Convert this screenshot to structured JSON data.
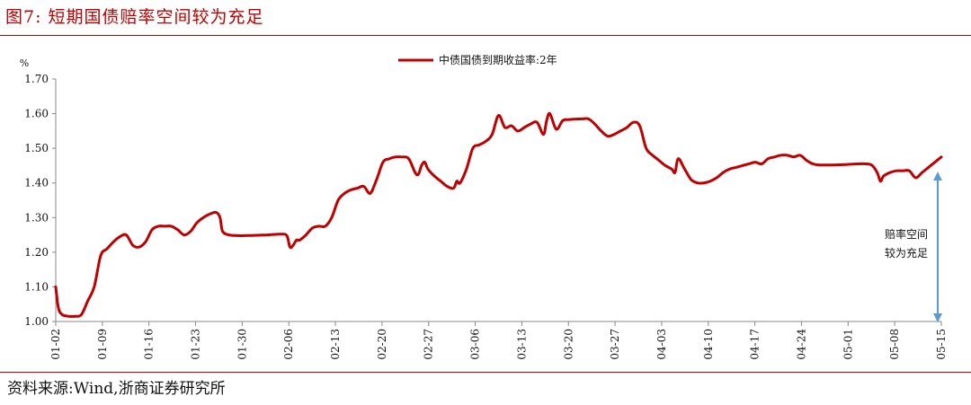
{
  "figure_title": "图7:  短期国债赔率空间较为充足",
  "source": "资料来源:Wind,浙商证券研究所",
  "colors": {
    "accent": "#c00000",
    "series": "#c00000",
    "arrow": "#5b9bd5"
  },
  "chart_data": {
    "type": "line",
    "ylabel": "%",
    "ylim": [
      1.0,
      1.7
    ],
    "yticks": [
      "1.00",
      "1.10",
      "1.20",
      "1.30",
      "1.40",
      "1.50",
      "1.60",
      "1.70"
    ],
    "xticks": [
      "01-02",
      "01-09",
      "01-16",
      "01-23",
      "01-30",
      "02-06",
      "02-13",
      "02-20",
      "02-27",
      "03-06",
      "03-13",
      "03-20",
      "03-27",
      "04-03",
      "04-10",
      "04-17",
      "04-24",
      "05-01",
      "05-08",
      "05-15"
    ],
    "legend_position": "top-center",
    "grid": false,
    "annotation": {
      "line1": "赔率空间",
      "line2": "较为充足",
      "from": 1.0,
      "to": 1.43
    },
    "series": [
      {
        "name": "中债国债到期收益率:2年",
        "points": [
          [
            0,
            1.1
          ],
          [
            0.4,
            1.04
          ],
          [
            1,
            1.02
          ],
          [
            2,
            1.015
          ],
          [
            3,
            1.015
          ],
          [
            4,
            1.02
          ],
          [
            5,
            1.06
          ],
          [
            6,
            1.1
          ],
          [
            7,
            1.19
          ],
          [
            8,
            1.21
          ],
          [
            9,
            1.23
          ],
          [
            10,
            1.245
          ],
          [
            11,
            1.25
          ],
          [
            12,
            1.22
          ],
          [
            13,
            1.215
          ],
          [
            14,
            1.23
          ],
          [
            15,
            1.265
          ],
          [
            16,
            1.275
          ],
          [
            17,
            1.275
          ],
          [
            18,
            1.275
          ],
          [
            19,
            1.265
          ],
          [
            20,
            1.25
          ],
          [
            21,
            1.26
          ],
          [
            22,
            1.285
          ],
          [
            23,
            1.3
          ],
          [
            24,
            1.31
          ],
          [
            25,
            1.315
          ],
          [
            25.6,
            1.3
          ],
          [
            26,
            1.26
          ],
          [
            27,
            1.25
          ],
          [
            28,
            1.248
          ],
          [
            30,
            1.248
          ],
          [
            33,
            1.25
          ],
          [
            35,
            1.252
          ],
          [
            36,
            1.248
          ],
          [
            36.5,
            1.215
          ],
          [
            37,
            1.22
          ],
          [
            37.5,
            1.235
          ],
          [
            38,
            1.235
          ],
          [
            39,
            1.25
          ],
          [
            40,
            1.27
          ],
          [
            41,
            1.275
          ],
          [
            42,
            1.275
          ],
          [
            43,
            1.3
          ],
          [
            44,
            1.35
          ],
          [
            45,
            1.37
          ],
          [
            46,
            1.38
          ],
          [
            47,
            1.385
          ],
          [
            48,
            1.39
          ],
          [
            49,
            1.37
          ],
          [
            50,
            1.41
          ],
          [
            51,
            1.46
          ],
          [
            52,
            1.47
          ],
          [
            53,
            1.475
          ],
          [
            54,
            1.475
          ],
          [
            55,
            1.47
          ],
          [
            56,
            1.43
          ],
          [
            56.5,
            1.425
          ],
          [
            57,
            1.45
          ],
          [
            57.5,
            1.46
          ],
          [
            58,
            1.44
          ],
          [
            59,
            1.42
          ],
          [
            60,
            1.405
          ],
          [
            61,
            1.39
          ],
          [
            62,
            1.385
          ],
          [
            62.5,
            1.405
          ],
          [
            63,
            1.4
          ],
          [
            64,
            1.44
          ],
          [
            65,
            1.5
          ],
          [
            66,
            1.51
          ],
          [
            67,
            1.52
          ],
          [
            68,
            1.54
          ],
          [
            69,
            1.595
          ],
          [
            70,
            1.56
          ],
          [
            71,
            1.565
          ],
          [
            72,
            1.55
          ],
          [
            73,
            1.56
          ],
          [
            74,
            1.57
          ],
          [
            75,
            1.575
          ],
          [
            76,
            1.54
          ],
          [
            76.5,
            1.58
          ],
          [
            77,
            1.6
          ],
          [
            78,
            1.555
          ],
          [
            79,
            1.58
          ],
          [
            80,
            1.583
          ],
          [
            82,
            1.585
          ],
          [
            83,
            1.585
          ],
          [
            84,
            1.57
          ],
          [
            85,
            1.55
          ],
          [
            86,
            1.535
          ],
          [
            87,
            1.54
          ],
          [
            88,
            1.55
          ],
          [
            89,
            1.56
          ],
          [
            90,
            1.575
          ],
          [
            91,
            1.565
          ],
          [
            92,
            1.5
          ],
          [
            93,
            1.48
          ],
          [
            94,
            1.465
          ],
          [
            95,
            1.45
          ],
          [
            96,
            1.44
          ],
          [
            96.5,
            1.43
          ],
          [
            97,
            1.47
          ],
          [
            98,
            1.44
          ],
          [
            99,
            1.41
          ],
          [
            100,
            1.4
          ],
          [
            101,
            1.4
          ],
          [
            102,
            1.405
          ],
          [
            103,
            1.415
          ],
          [
            104,
            1.43
          ],
          [
            105,
            1.44
          ],
          [
            106,
            1.445
          ],
          [
            107,
            1.45
          ],
          [
            108,
            1.455
          ],
          [
            109,
            1.46
          ],
          [
            110,
            1.455
          ],
          [
            111,
            1.47
          ],
          [
            112,
            1.475
          ],
          [
            113,
            1.48
          ],
          [
            114,
            1.48
          ],
          [
            115,
            1.475
          ],
          [
            116,
            1.48
          ],
          [
            117,
            1.465
          ],
          [
            118,
            1.455
          ],
          [
            119,
            1.452
          ],
          [
            121,
            1.452
          ],
          [
            123,
            1.453
          ],
          [
            125,
            1.455
          ],
          [
            127,
            1.453
          ],
          [
            128,
            1.43
          ],
          [
            128.5,
            1.405
          ],
          [
            129,
            1.42
          ],
          [
            130,
            1.43
          ],
          [
            131,
            1.435
          ],
          [
            132,
            1.435
          ],
          [
            133,
            1.435
          ],
          [
            134,
            1.415
          ],
          [
            135,
            1.43
          ],
          [
            136,
            1.445
          ],
          [
            137,
            1.46
          ],
          [
            138,
            1.475
          ]
        ]
      }
    ]
  }
}
